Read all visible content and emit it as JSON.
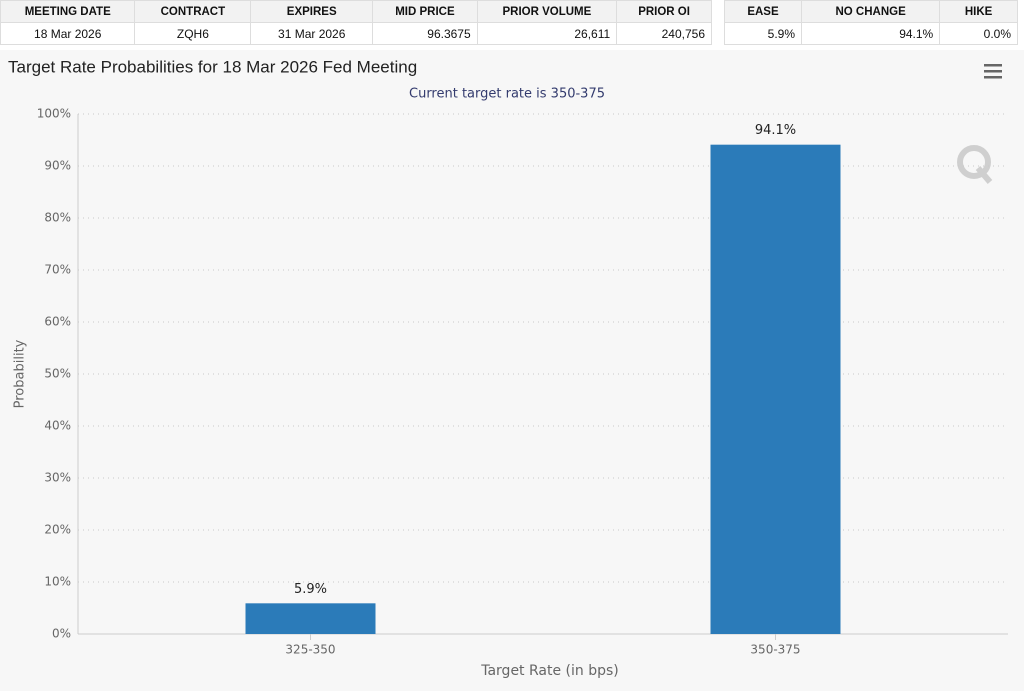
{
  "tables": [
    {
      "headers": [
        "MEETING DATE",
        "CONTRACT",
        "EXPIRES",
        "MID PRICE",
        "PRIOR VOLUME",
        "PRIOR OI"
      ],
      "rows": [
        [
          "18 Mar 2026",
          "ZQH6",
          "31 Mar 2026",
          "96.3675",
          "26,611",
          "240,756"
        ]
      ]
    },
    {
      "headers": [
        "EASE",
        "NO CHANGE",
        "HIKE"
      ],
      "rows": [
        [
          "5.9%",
          "94.1%",
          "0.0%"
        ]
      ]
    }
  ],
  "chart_data": {
    "type": "bar",
    "title": "Target Rate Probabilities for 18 Mar 2026 Fed Meeting",
    "subtitle": "Current target rate is 350-375",
    "xlabel": "Target Rate (in bps)",
    "ylabel": "Probability",
    "categories": [
      "325-350",
      "350-375"
    ],
    "values": [
      5.9,
      94.1
    ],
    "value_labels": [
      "5.9%",
      "94.1%"
    ],
    "color": "#2b7bb9",
    "ylim": [
      0,
      100
    ],
    "yticks": [
      {
        "value": 0,
        "label": "0%"
      },
      {
        "value": 10,
        "label": "10%"
      },
      {
        "value": 20,
        "label": "20%"
      },
      {
        "value": 30,
        "label": "30%"
      },
      {
        "value": 40,
        "label": "40%"
      },
      {
        "value": 50,
        "label": "50%"
      },
      {
        "value": 60,
        "label": "60%"
      },
      {
        "value": 70,
        "label": "70%"
      },
      {
        "value": 80,
        "label": "80%"
      },
      {
        "value": 90,
        "label": "90%"
      },
      {
        "value": 100,
        "label": "100%"
      }
    ],
    "grid": true
  }
}
